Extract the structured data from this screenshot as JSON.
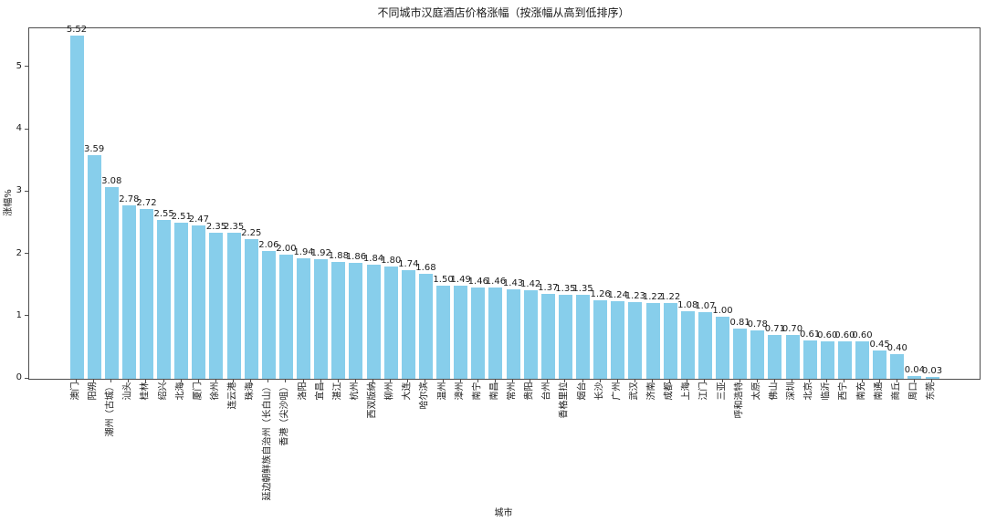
{
  "chart_data": {
    "type": "bar",
    "title": "不同城市汉庭酒店价格涨幅（按涨幅从高到低排序）",
    "xlabel": "城市",
    "ylabel": "涨幅%",
    "categories": [
      "澳门",
      "阳朔",
      "潮州（古城）",
      "汕头",
      "桂林",
      "绍兴",
      "北海",
      "厦门",
      "徐州",
      "连云港",
      "珠海",
      "延边朝鲜族自治州（长白山）",
      "香港（尖沙咀）",
      "洛阳",
      "宜昌",
      "湛江",
      "杭州",
      "西双版纳",
      "柳州",
      "大连",
      "哈尔滨",
      "温州",
      "漳州",
      "南宁",
      "南昌",
      "常州",
      "贵阳",
      "台州",
      "香格里拉",
      "烟台",
      "长沙",
      "广州",
      "武汉",
      "济南",
      "成都",
      "上海",
      "江门",
      "三亚",
      "呼和浩特",
      "太原",
      "佛山",
      "深圳",
      "北京",
      "临沂",
      "西宁",
      "南充",
      "南通",
      "商丘",
      "周口",
      "东莞"
    ],
    "values": [
      5.52,
      3.59,
      3.08,
      2.78,
      2.72,
      2.55,
      2.51,
      2.47,
      2.35,
      2.35,
      2.25,
      2.06,
      2.0,
      1.94,
      1.92,
      1.88,
      1.86,
      1.84,
      1.8,
      1.74,
      1.68,
      1.5,
      1.49,
      1.46,
      1.46,
      1.43,
      1.42,
      1.37,
      1.35,
      1.35,
      1.26,
      1.24,
      1.23,
      1.22,
      1.22,
      1.08,
      1.07,
      1.0,
      0.81,
      0.78,
      0.71,
      0.7,
      0.61,
      0.6,
      0.6,
      0.6,
      0.45,
      0.4,
      0.04,
      0.03
    ],
    "yticks": [
      0,
      1,
      2,
      3,
      4,
      5
    ],
    "ylim": [
      0,
      5.63
    ],
    "value_label_decimals": 2,
    "bar_color": "#87CEEB",
    "axis_color": "#4d4d4d",
    "text_color": "#1a1a1a",
    "legend": "none",
    "grid": "off"
  }
}
